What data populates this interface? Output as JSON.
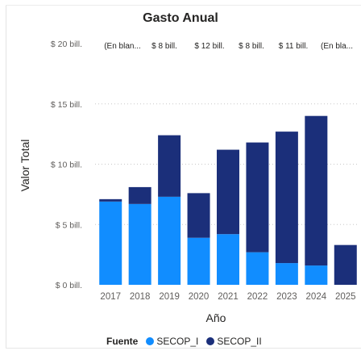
{
  "chart_data": {
    "type": "bar",
    "stacked": true,
    "title": "Gasto Anual",
    "xlabel": "Año",
    "ylabel": "Valor Total",
    "ylim": [
      0,
      20
    ],
    "yticks": [
      {
        "value": 0,
        "label": "$ 0 bill."
      },
      {
        "value": 5,
        "label": "$ 5 bill."
      },
      {
        "value": 10,
        "label": "$ 10 bill."
      },
      {
        "value": 15,
        "label": "$ 15 bill."
      },
      {
        "value": 20,
        "label": "$ 20 bill."
      }
    ],
    "grid": true,
    "categories": [
      "2017",
      "2018",
      "2019",
      "2020",
      "2021",
      "2022",
      "2023",
      "2024",
      "2025"
    ],
    "series": [
      {
        "name": "SECOP_I",
        "color": "#118DFF",
        "values": [
          6.9,
          6.7,
          7.3,
          3.9,
          4.2,
          2.7,
          1.8,
          1.6,
          0
        ]
      },
      {
        "name": "SECOP_II",
        "color": "#1B2F7A",
        "values": [
          0.2,
          1.4,
          5.1,
          3.7,
          7.0,
          9.1,
          10.9,
          12.4,
          3.3
        ]
      }
    ],
    "top_labels": [
      "(En blan...",
      "$ 8 bill.",
      "$ 12 bill.",
      "$ 8 bill.",
      "$ 11 bill.",
      "(En bla..."
    ],
    "legend": {
      "title": "Fuente",
      "position": "bottom"
    }
  }
}
